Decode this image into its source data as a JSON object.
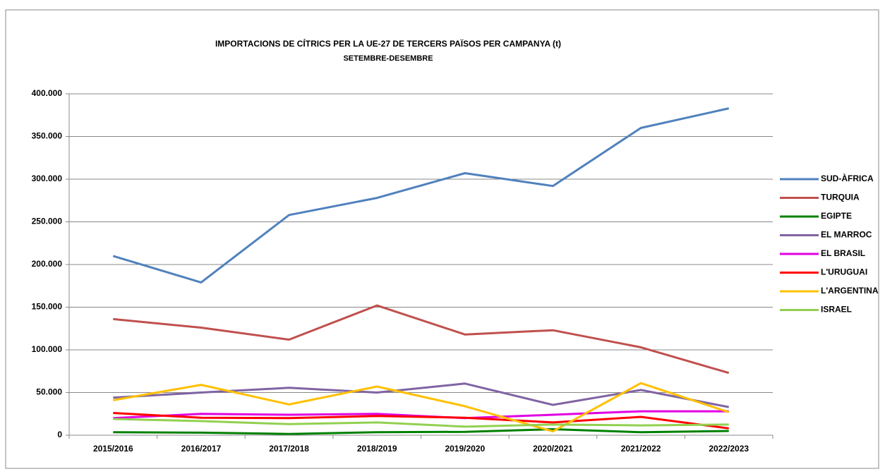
{
  "chart_data": {
    "type": "line",
    "title": "IMPORTACIONS DE CÍTRICS PER LA UE-27 DE TERCERS PAÏSOS PER CAMPANYA  (t)",
    "subtitle": "SETEMBRE-DESEMBRE",
    "categories": [
      "2015/2016",
      "2016/2017",
      "2017/2018",
      "2018/2019",
      "2019/2020",
      "2020/2021",
      "2021/2022",
      "2022/2023"
    ],
    "series": [
      {
        "name": "SUD-ÀFRICA",
        "color": "#4f81bd",
        "values": [
          210000,
          179000,
          258000,
          278000,
          307000,
          292000,
          360000,
          383000
        ]
      },
      {
        "name": "TURQUIA",
        "color": "#c0504d",
        "values": [
          136000,
          126000,
          112000,
          152000,
          118000,
          123000,
          103000,
          73000
        ]
      },
      {
        "name": "EGIPTE",
        "color": "#008000",
        "values": [
          3500,
          3000,
          1500,
          3500,
          4000,
          7000,
          3500,
          5000
        ]
      },
      {
        "name": "EL MARROC",
        "color": "#8064a2",
        "values": [
          44000,
          50000,
          55500,
          50000,
          60500,
          35500,
          53000,
          33000
        ]
      },
      {
        "name": "EL BRASIL",
        "color": "#e100e1",
        "values": [
          20000,
          25000,
          24000,
          25000,
          20000,
          24000,
          28000,
          28000
        ]
      },
      {
        "name": "L'URUGUAI",
        "color": "#ff0000",
        "values": [
          26000,
          20500,
          20000,
          22500,
          20500,
          15000,
          21500,
          8000
        ]
      },
      {
        "name": "L'ARGENTINA",
        "color": "#ffc000",
        "values": [
          41000,
          59000,
          36000,
          57000,
          34000,
          4500,
          61000,
          27000
        ]
      },
      {
        "name": "ISRAEL",
        "color": "#92d050",
        "values": [
          19000,
          16500,
          13000,
          15000,
          10000,
          12500,
          11500,
          12500
        ]
      }
    ],
    "ylim": [
      0,
      400000
    ],
    "yticks": [
      0,
      {
        "value": 50000,
        "label": "50.000"
      },
      {
        "value": 100000,
        "label": "100.000"
      },
      {
        "value": 150000,
        "label": "150.000"
      },
      {
        "value": 200000,
        "label": "200.000"
      },
      {
        "value": 250000,
        "label": "250.000"
      },
      {
        "value": 300000,
        "label": "300.000"
      },
      {
        "value": 350000,
        "label": "350.000"
      },
      {
        "value": 400000,
        "label": "400.000"
      }
    ],
    "grid": true,
    "legend": "right"
  }
}
